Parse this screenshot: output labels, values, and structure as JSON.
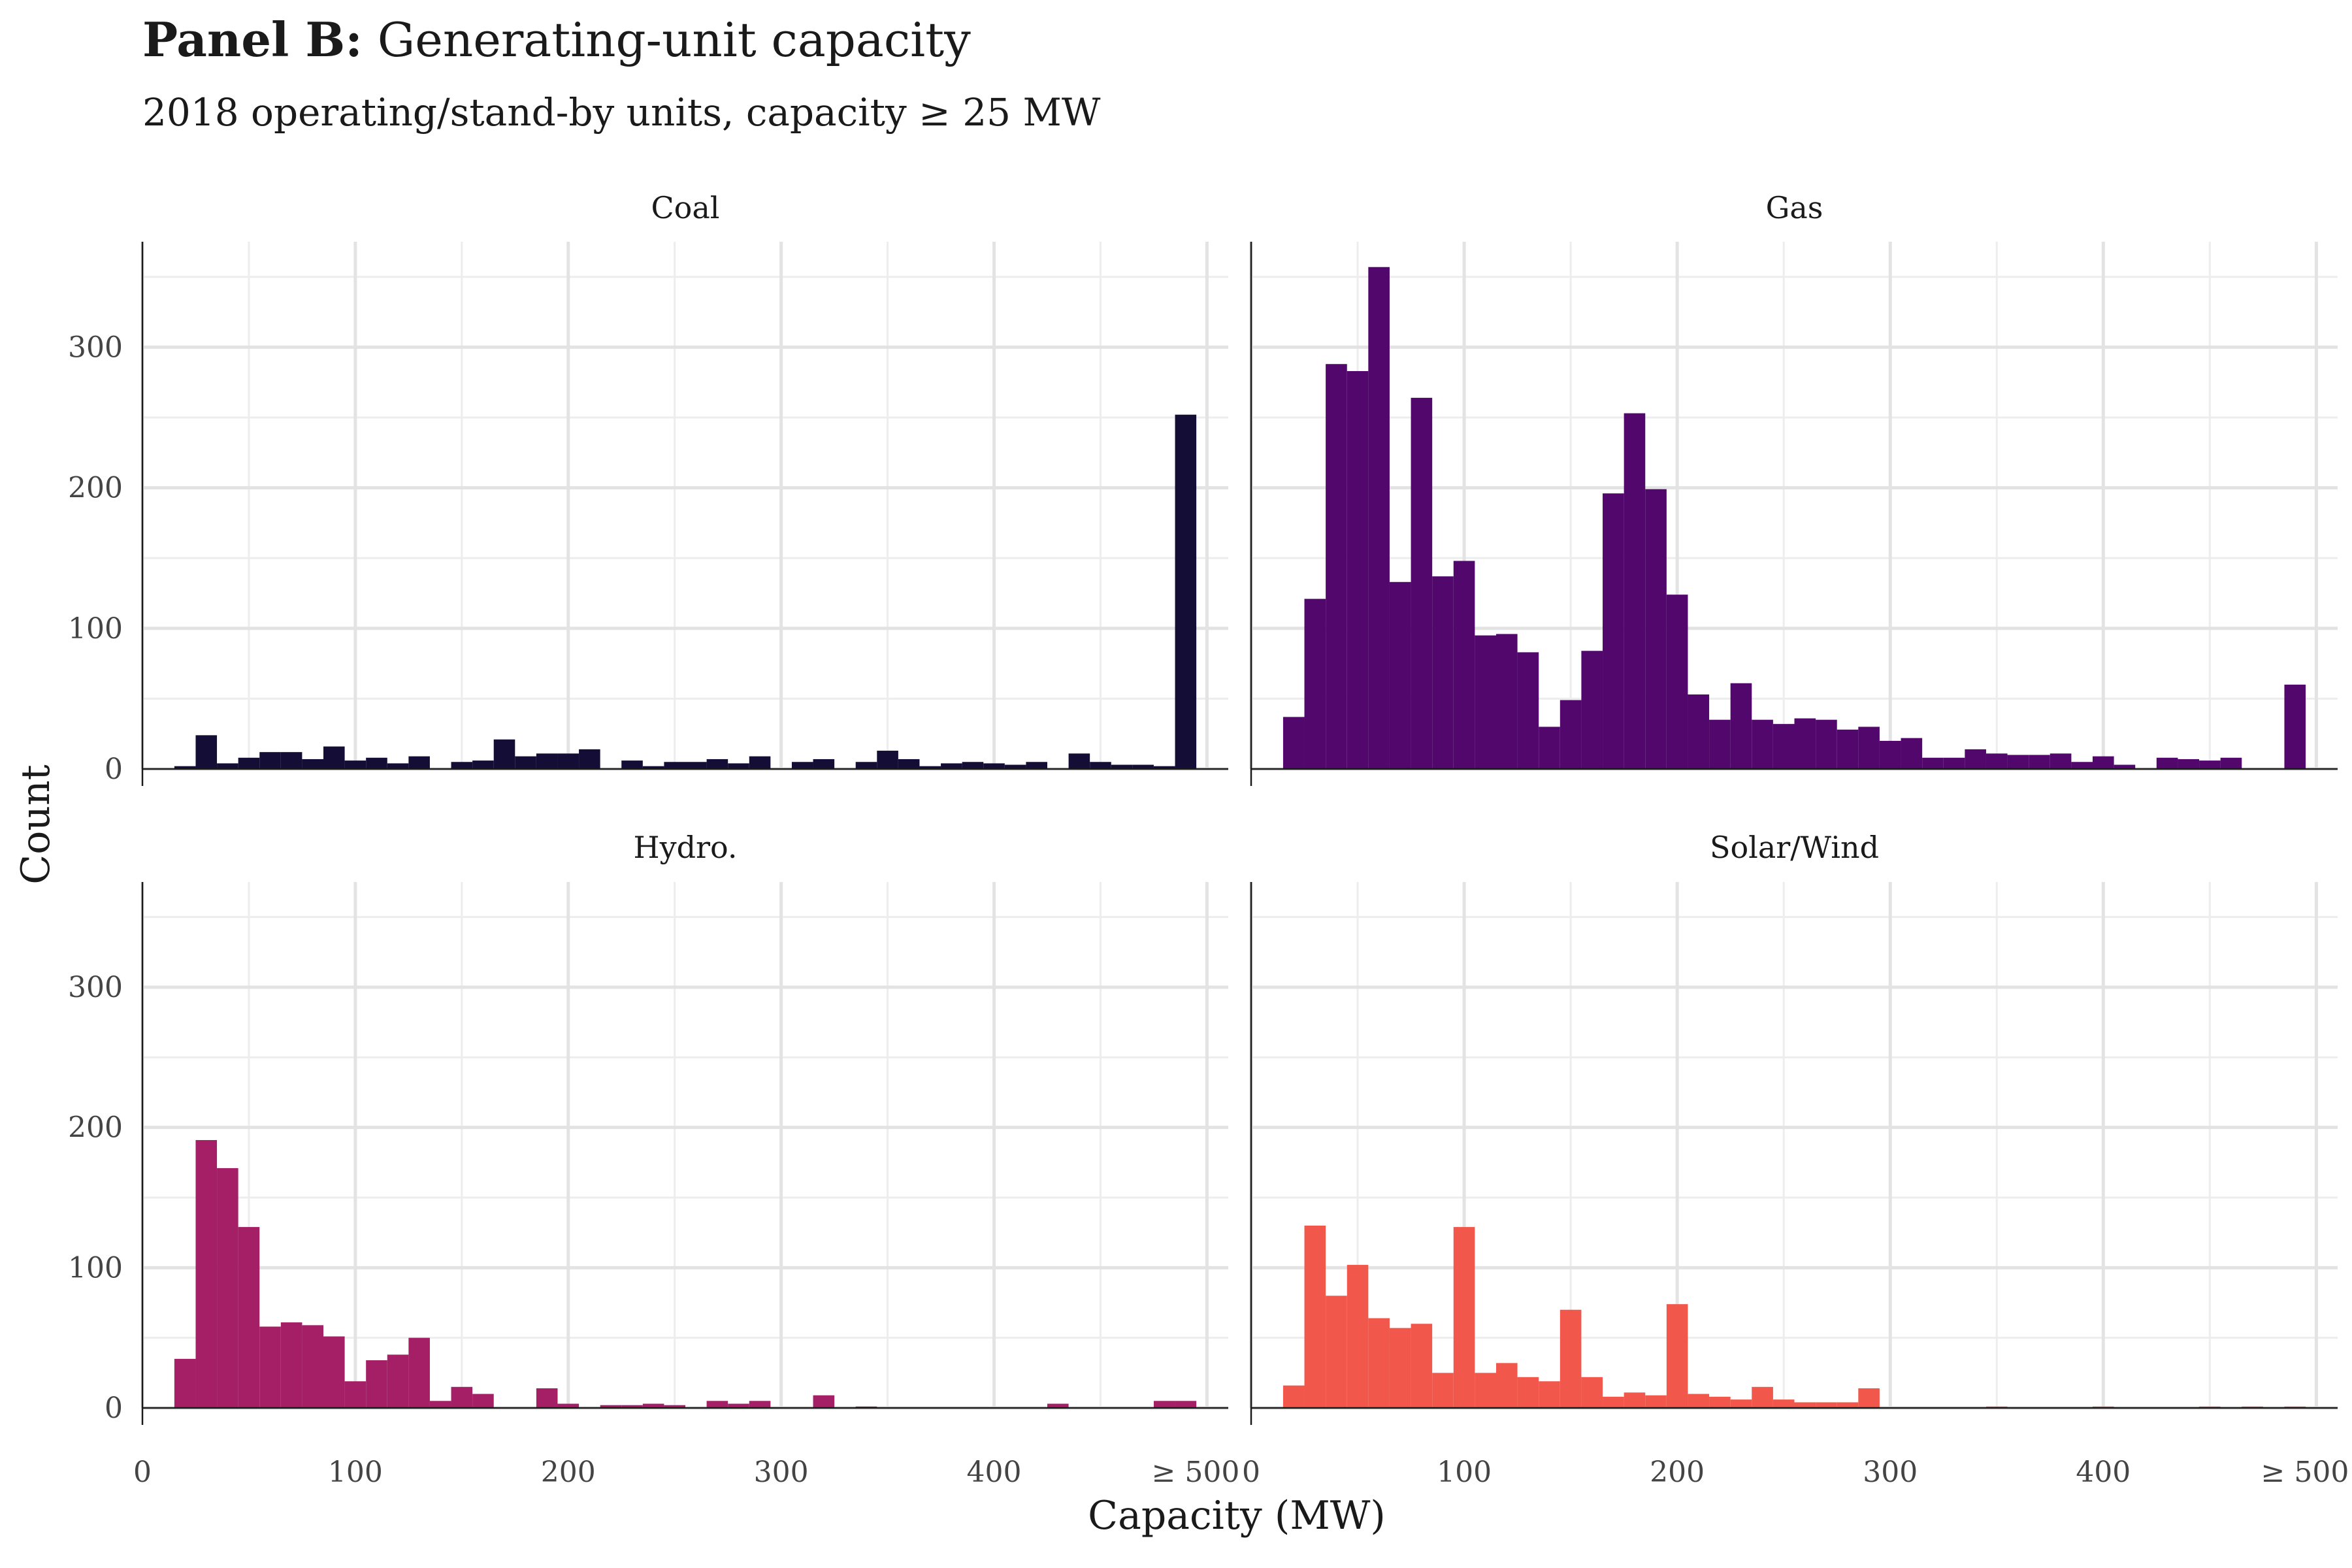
{
  "title": {
    "prefix": "Panel B:",
    "text": "Generating-unit capacity"
  },
  "subtitle": "2018 operating/stand-by units, capacity  ≥ 25 MW",
  "xlabel": "Capacity (MW)",
  "ylabel": "Count",
  "x_ticks": [
    "0",
    "100",
    "200",
    "300",
    "400",
    "≥  500"
  ],
  "y_ticks": [
    "0",
    "100",
    "200",
    "300"
  ],
  "chart_data": {
    "type": "bar",
    "facet_layout": "2x2",
    "bin_width_mw": 10,
    "bin_centers": [
      20,
      30,
      40,
      50,
      60,
      70,
      80,
      90,
      100,
      110,
      120,
      130,
      140,
      150,
      160,
      170,
      180,
      190,
      200,
      210,
      220,
      230,
      240,
      250,
      260,
      270,
      280,
      290,
      300,
      310,
      320,
      330,
      340,
      350,
      360,
      370,
      380,
      390,
      400,
      410,
      420,
      430,
      440,
      450,
      460,
      470,
      480,
      490,
      500
    ],
    "xlim": [
      0,
      510
    ],
    "ylim": [
      0,
      375
    ],
    "xlabel": "Capacity (MW)",
    "ylabel": "Count",
    "grid": true,
    "legend": "none",
    "series": [
      {
        "name": "Coal",
        "color": "#140E36",
        "values": [
          2,
          24,
          4,
          8,
          12,
          12,
          7,
          16,
          6,
          8,
          4,
          9,
          0,
          5,
          6,
          21,
          9,
          11,
          11,
          14,
          0,
          6,
          2,
          5,
          5,
          7,
          4,
          9,
          0,
          5,
          7,
          0,
          5,
          13,
          7,
          2,
          4,
          5,
          4,
          3,
          5,
          0,
          11,
          5,
          3,
          3,
          2,
          252,
          0
        ]
      },
      {
        "name": "Gas",
        "color": "#51076C",
        "values": [
          37,
          121,
          288,
          283,
          357,
          133,
          264,
          137,
          148,
          95,
          96,
          83,
          30,
          49,
          84,
          196,
          253,
          199,
          124,
          53,
          35,
          61,
          35,
          32,
          36,
          35,
          28,
          30,
          20,
          22,
          8,
          8,
          14,
          11,
          10,
          10,
          11,
          5,
          9,
          3,
          0,
          8,
          7,
          6,
          8,
          0,
          0,
          60,
          0
        ]
      },
      {
        "name": "Hydro.",
        "color": "#A41F65",
        "values": [
          35,
          191,
          171,
          129,
          58,
          61,
          59,
          51,
          19,
          34,
          38,
          50,
          5,
          15,
          10,
          0,
          0,
          14,
          3,
          0,
          2,
          2,
          3,
          2,
          0,
          5,
          3,
          5,
          0,
          0,
          9,
          0,
          1,
          0,
          0,
          0,
          0,
          0,
          0,
          0,
          0,
          3,
          0,
          0,
          0,
          0,
          5,
          5,
          0
        ]
      },
      {
        "name": "Solar/Wind",
        "color": "#F2574B",
        "values": [
          16,
          130,
          80,
          102,
          64,
          57,
          60,
          25,
          129,
          25,
          32,
          22,
          19,
          70,
          22,
          8,
          11,
          9,
          74,
          10,
          8,
          6,
          15,
          6,
          4,
          4,
          4,
          14,
          0,
          0,
          0,
          0,
          0,
          1,
          0,
          0,
          0,
          0,
          1,
          0,
          0,
          0,
          0,
          1,
          0,
          1,
          0,
          1,
          0
        ]
      }
    ]
  }
}
